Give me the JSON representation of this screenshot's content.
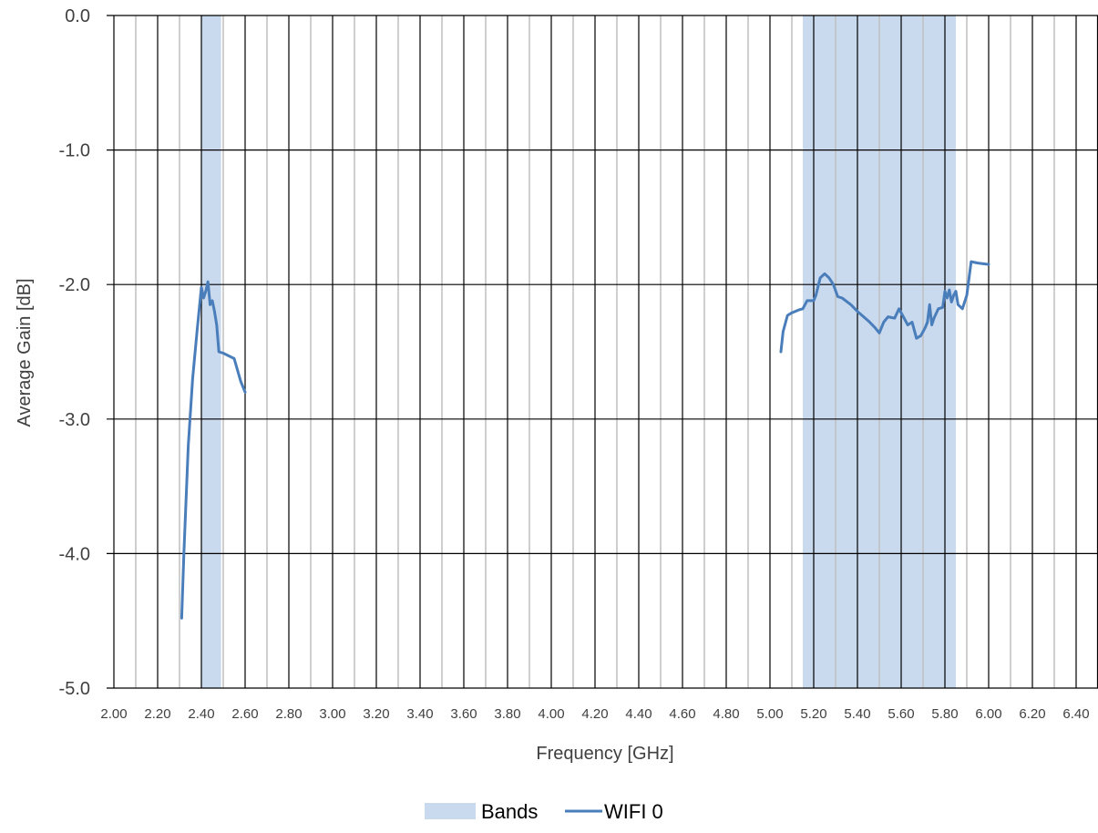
{
  "chart_data": {
    "type": "line",
    "xlabel": "Frequency [GHz]",
    "ylabel": "Average Gain [dB]",
    "xlim": [
      2.0,
      6.5
    ],
    "ylim": [
      -5.0,
      0.0
    ],
    "x_ticks": [
      "2.00",
      "2.20",
      "2.40",
      "2.60",
      "2.80",
      "3.00",
      "3.20",
      "3.40",
      "3.60",
      "3.80",
      "4.00",
      "4.20",
      "4.40",
      "4.60",
      "4.80",
      "5.00",
      "5.20",
      "5.40",
      "5.60",
      "5.80",
      "6.00",
      "6.20",
      "6.40"
    ],
    "y_ticks": [
      "0.0",
      "-1.0",
      "-2.0",
      "-3.0",
      "-4.0",
      "-5.0"
    ],
    "grid": true,
    "legend_position": "bottom",
    "bands": {
      "name": "Bands",
      "color": "#c9d9ee",
      "ranges": [
        [
          2.4,
          2.49
        ],
        [
          5.15,
          5.85
        ]
      ]
    },
    "series": [
      {
        "name": "WIFI 0",
        "color": "#4a7ebb",
        "segments": [
          [
            [
              2.31,
              -4.48
            ],
            [
              2.32,
              -4.0
            ],
            [
              2.34,
              -3.2
            ],
            [
              2.36,
              -2.7
            ],
            [
              2.38,
              -2.35
            ],
            [
              2.4,
              -2.02
            ],
            [
              2.41,
              -2.1
            ],
            [
              2.42,
              -2.05
            ],
            [
              2.43,
              -1.98
            ],
            [
              2.44,
              -2.15
            ],
            [
              2.45,
              -2.12
            ],
            [
              2.46,
              -2.2
            ],
            [
              2.47,
              -2.3
            ],
            [
              2.48,
              -2.5
            ],
            [
              2.5,
              -2.51
            ],
            [
              2.55,
              -2.55
            ],
            [
              2.58,
              -2.72
            ],
            [
              2.6,
              -2.8
            ]
          ],
          [
            [
              5.05,
              -2.5
            ],
            [
              5.06,
              -2.35
            ],
            [
              5.08,
              -2.23
            ],
            [
              5.1,
              -2.21
            ],
            [
              5.13,
              -2.19
            ],
            [
              5.15,
              -2.18
            ],
            [
              5.17,
              -2.12
            ],
            [
              5.2,
              -2.12
            ],
            [
              5.21,
              -2.08
            ],
            [
              5.23,
              -1.95
            ],
            [
              5.25,
              -1.92
            ],
            [
              5.27,
              -1.95
            ],
            [
              5.29,
              -2.0
            ],
            [
              5.31,
              -2.09
            ],
            [
              5.33,
              -2.1
            ],
            [
              5.37,
              -2.15
            ],
            [
              5.4,
              -2.2
            ],
            [
              5.45,
              -2.27
            ],
            [
              5.48,
              -2.32
            ],
            [
              5.5,
              -2.36
            ],
            [
              5.52,
              -2.28
            ],
            [
              5.54,
              -2.24
            ],
            [
              5.57,
              -2.25
            ],
            [
              5.59,
              -2.18
            ],
            [
              5.61,
              -2.24
            ],
            [
              5.63,
              -2.3
            ],
            [
              5.65,
              -2.28
            ],
            [
              5.67,
              -2.4
            ],
            [
              5.69,
              -2.38
            ],
            [
              5.71,
              -2.32
            ],
            [
              5.72,
              -2.28
            ],
            [
              5.73,
              -2.15
            ],
            [
              5.74,
              -2.3
            ],
            [
              5.75,
              -2.25
            ],
            [
              5.77,
              -2.18
            ],
            [
              5.79,
              -2.17
            ],
            [
              5.8,
              -2.05
            ],
            [
              5.81,
              -2.1
            ],
            [
              5.82,
              -2.04
            ],
            [
              5.83,
              -2.13
            ],
            [
              5.84,
              -2.08
            ],
            [
              5.85,
              -2.05
            ],
            [
              5.86,
              -2.15
            ],
            [
              5.88,
              -2.18
            ],
            [
              5.9,
              -2.08
            ],
            [
              5.92,
              -1.83
            ],
            [
              5.95,
              -1.84
            ],
            [
              6.0,
              -1.85
            ]
          ]
        ]
      }
    ]
  }
}
